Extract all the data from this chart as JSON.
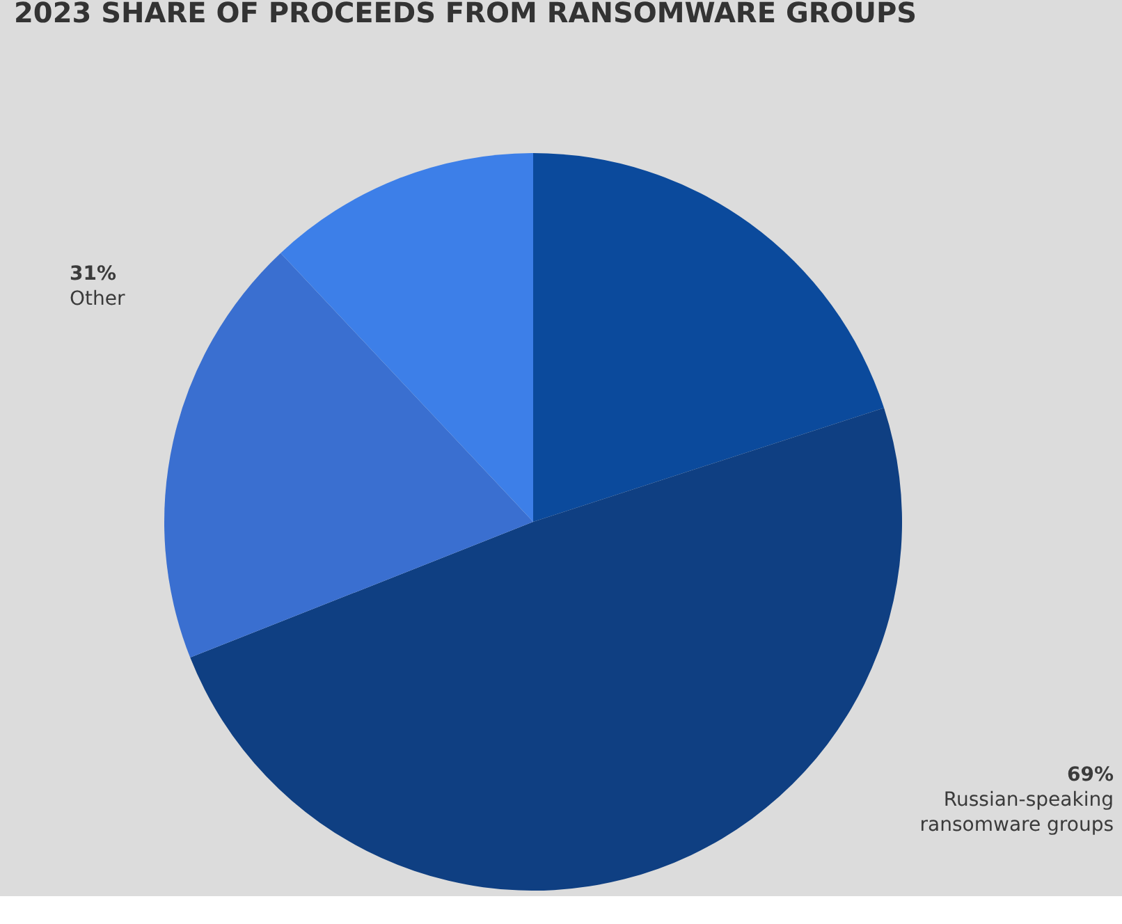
{
  "chart_data": {
    "type": "pie",
    "title": "2023 SHARE OF PROCEEDS FROM RANSOMWARE GROUPS",
    "categories": [
      null,
      null,
      null,
      null
    ],
    "values": [
      20,
      49,
      19,
      12
    ],
    "colors": [
      "#0b4a9c",
      "#0f3f82",
      "#3a6fd0",
      "#3d7fe8"
    ],
    "annotations": [
      "31%\nOther",
      "69%\nRussian-speaking\nransomware groups"
    ]
  }
}
